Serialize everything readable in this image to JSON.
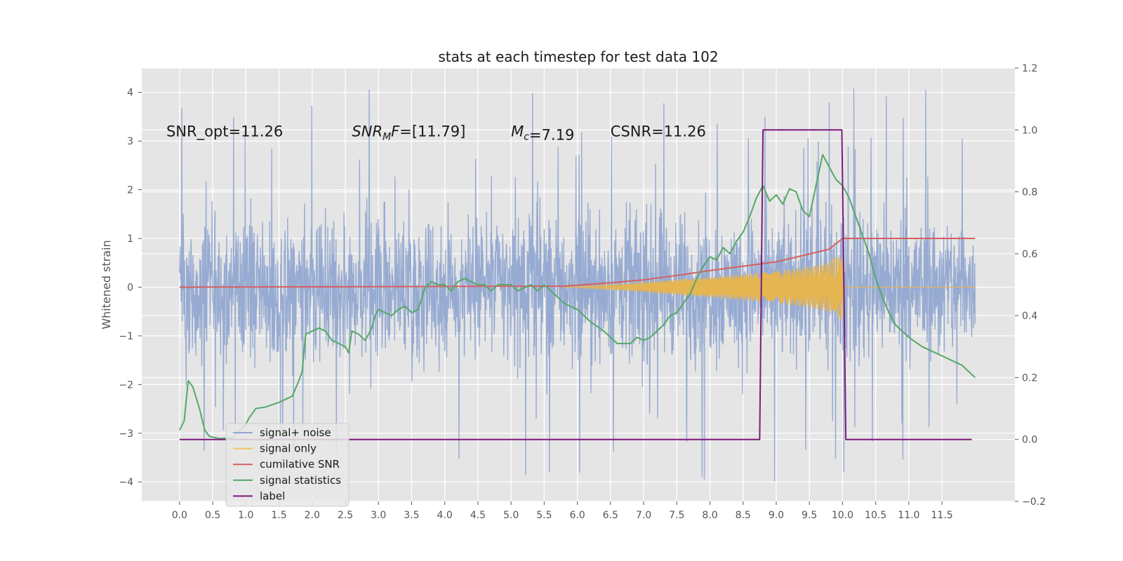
{
  "chart_data": {
    "type": "line",
    "title": "stats at each timestep for test data 102",
    "ylabel": "Whitened strain",
    "y2label": "",
    "xlim": [
      -0.57,
      12.6
    ],
    "ylim": [
      -4.4,
      4.5
    ],
    "y2lim": [
      -0.2,
      1.2
    ],
    "x_ticks": [
      0.0,
      0.5,
      1.0,
      1.5,
      2.0,
      2.5,
      3.0,
      3.5,
      4.0,
      4.5,
      5.0,
      5.5,
      6.0,
      6.5,
      7.0,
      7.5,
      8.0,
      8.5,
      9.0,
      9.5,
      10.0,
      10.5,
      11.0,
      11.5
    ],
    "x_tick_labels": [
      "0.0",
      "0.5",
      "1.0",
      "1.5",
      "2.0",
      "2.5",
      "3.0",
      "3.5",
      "4.0",
      "4.5",
      "5.0",
      "5.5",
      "6.0",
      "6.5",
      "7.0",
      "7.5",
      "8.0",
      "8.5",
      "9.0",
      "9.5",
      "10.0",
      "10.5",
      "11.0",
      "11.5"
    ],
    "y_ticks": [
      -4,
      -3,
      -2,
      -1,
      0,
      1,
      2,
      3,
      4
    ],
    "y_tick_labels": [
      "−4",
      "−3",
      "−2",
      "−1",
      "0",
      "1",
      "2",
      "3",
      "4"
    ],
    "y2_ticks": [
      -0.2,
      0.0,
      0.2,
      0.4,
      0.6,
      0.8,
      1.0,
      1.2
    ],
    "y2_tick_labels": [
      "−0.2",
      "0.0",
      "0.2",
      "0.4",
      "0.6",
      "0.8",
      "1.0",
      "1.2"
    ],
    "grid": true,
    "legend_placement": "lower-left",
    "annotations": [
      {
        "text": "SNR_opt=11.26",
        "x": -0.2,
        "y": 3.2
      },
      {
        "text": "SNR_MF=[11.79]",
        "x": 2.6,
        "y": 3.2,
        "style": "math"
      },
      {
        "text": "M_c=7.19",
        "x": 5.0,
        "y": 3.2,
        "style": "math"
      },
      {
        "text": "CSNR=11.26",
        "x": 6.5,
        "y": 3.2
      }
    ],
    "series": [
      {
        "name": "signal+ noise",
        "axis": "left",
        "color": "#92a8d1",
        "kind": "noise",
        "x_range": [
          0.0,
          12.0
        ],
        "envelope": {
          "typical_max": 2.0,
          "typical_min": -2.0,
          "peak_max": 4.1,
          "peak_min": -4.0
        }
      },
      {
        "name": "signal only",
        "axis": "left",
        "color": "#e5b552",
        "kind": "chirp",
        "envelope_points": [
          [
            5.8,
            0.0
          ],
          [
            6.5,
            0.05
          ],
          [
            7.0,
            0.1
          ],
          [
            7.5,
            0.16
          ],
          [
            8.0,
            0.21
          ],
          [
            8.5,
            0.27
          ],
          [
            9.0,
            0.33
          ],
          [
            9.5,
            0.43
          ],
          [
            9.8,
            0.52
          ],
          [
            10.0,
            0.7
          ],
          [
            10.02,
            0.0
          ],
          [
            12.0,
            0.0
          ]
        ]
      },
      {
        "name": "cumilative SNR",
        "axis": "left",
        "color": "#d65f5f",
        "points": [
          [
            0.0,
            0.0
          ],
          [
            5.8,
            0.02
          ],
          [
            6.5,
            0.09
          ],
          [
            7.0,
            0.15
          ],
          [
            7.5,
            0.24
          ],
          [
            8.0,
            0.34
          ],
          [
            8.5,
            0.43
          ],
          [
            9.0,
            0.52
          ],
          [
            9.5,
            0.68
          ],
          [
            9.8,
            0.78
          ],
          [
            10.0,
            1.0
          ],
          [
            12.0,
            1.0
          ]
        ]
      },
      {
        "name": "signal statistics",
        "axis": "right",
        "color": "#55a868",
        "points": [
          [
            0.0,
            0.03
          ],
          [
            0.07,
            0.06
          ],
          [
            0.13,
            0.19
          ],
          [
            0.2,
            0.17
          ],
          [
            0.3,
            0.1
          ],
          [
            0.38,
            0.03
          ],
          [
            0.45,
            0.01
          ],
          [
            0.6,
            0.003
          ],
          [
            0.8,
            0.005
          ],
          [
            1.0,
            0.05
          ],
          [
            1.05,
            0.07
          ],
          [
            1.15,
            0.1
          ],
          [
            1.3,
            0.105
          ],
          [
            1.5,
            0.12
          ],
          [
            1.6,
            0.13
          ],
          [
            1.7,
            0.14
          ],
          [
            1.8,
            0.19
          ],
          [
            1.85,
            0.22
          ],
          [
            1.9,
            0.34
          ],
          [
            2.0,
            0.35
          ],
          [
            2.1,
            0.36
          ],
          [
            2.2,
            0.35
          ],
          [
            2.3,
            0.32
          ],
          [
            2.4,
            0.31
          ],
          [
            2.5,
            0.3
          ],
          [
            2.55,
            0.28
          ],
          [
            2.6,
            0.35
          ],
          [
            2.7,
            0.34
          ],
          [
            2.8,
            0.32
          ],
          [
            2.9,
            0.36
          ],
          [
            2.95,
            0.4
          ],
          [
            3.0,
            0.42
          ],
          [
            3.1,
            0.41
          ],
          [
            3.2,
            0.4
          ],
          [
            3.3,
            0.42
          ],
          [
            3.4,
            0.43
          ],
          [
            3.5,
            0.41
          ],
          [
            3.6,
            0.42
          ],
          [
            3.7,
            0.49
          ],
          [
            3.8,
            0.51
          ],
          [
            3.9,
            0.5
          ],
          [
            4.0,
            0.5
          ],
          [
            4.1,
            0.48
          ],
          [
            4.2,
            0.51
          ],
          [
            4.3,
            0.52
          ],
          [
            4.4,
            0.51
          ],
          [
            4.5,
            0.5
          ],
          [
            4.6,
            0.5
          ],
          [
            4.7,
            0.48
          ],
          [
            4.8,
            0.5
          ],
          [
            4.9,
            0.5
          ],
          [
            5.0,
            0.5
          ],
          [
            5.1,
            0.48
          ],
          [
            5.2,
            0.49
          ],
          [
            5.3,
            0.5
          ],
          [
            5.4,
            0.48
          ],
          [
            5.5,
            0.5
          ],
          [
            5.6,
            0.48
          ],
          [
            5.8,
            0.44
          ],
          [
            6.0,
            0.42
          ],
          [
            6.2,
            0.38
          ],
          [
            6.4,
            0.35
          ],
          [
            6.6,
            0.31
          ],
          [
            6.8,
            0.31
          ],
          [
            6.9,
            0.33
          ],
          [
            7.0,
            0.32
          ],
          [
            7.1,
            0.33
          ],
          [
            7.2,
            0.35
          ],
          [
            7.3,
            0.37
          ],
          [
            7.4,
            0.4
          ],
          [
            7.5,
            0.41
          ],
          [
            7.6,
            0.44
          ],
          [
            7.7,
            0.47
          ],
          [
            7.8,
            0.52
          ],
          [
            7.9,
            0.56
          ],
          [
            8.0,
            0.59
          ],
          [
            8.1,
            0.58
          ],
          [
            8.2,
            0.62
          ],
          [
            8.3,
            0.6
          ],
          [
            8.4,
            0.64
          ],
          [
            8.5,
            0.67
          ],
          [
            8.6,
            0.72
          ],
          [
            8.7,
            0.78
          ],
          [
            8.8,
            0.82
          ],
          [
            8.9,
            0.77
          ],
          [
            9.0,
            0.79
          ],
          [
            9.1,
            0.76
          ],
          [
            9.2,
            0.81
          ],
          [
            9.3,
            0.8
          ],
          [
            9.4,
            0.74
          ],
          [
            9.5,
            0.72
          ],
          [
            9.6,
            0.82
          ],
          [
            9.7,
            0.92
          ],
          [
            9.8,
            0.88
          ],
          [
            9.9,
            0.84
          ],
          [
            10.0,
            0.82
          ],
          [
            10.1,
            0.78
          ],
          [
            10.2,
            0.72
          ],
          [
            10.3,
            0.66
          ],
          [
            10.4,
            0.6
          ],
          [
            10.5,
            0.52
          ],
          [
            10.6,
            0.46
          ],
          [
            10.7,
            0.41
          ],
          [
            10.8,
            0.37
          ],
          [
            10.9,
            0.35
          ],
          [
            11.0,
            0.33
          ],
          [
            11.2,
            0.3
          ],
          [
            11.4,
            0.28
          ],
          [
            11.6,
            0.26
          ],
          [
            11.8,
            0.24
          ],
          [
            12.0,
            0.2
          ]
        ]
      },
      {
        "name": "label",
        "axis": "right",
        "color": "#7b1a7b",
        "points": [
          [
            0.0,
            0.0
          ],
          [
            8.75,
            0.0
          ],
          [
            8.8,
            1.0
          ],
          [
            9.99,
            1.0
          ],
          [
            10.05,
            0.0
          ],
          [
            11.95,
            0.0
          ]
        ]
      }
    ]
  },
  "legend": {
    "items": [
      {
        "label": "signal+ noise",
        "color": "#92a8d1"
      },
      {
        "label": "signal only",
        "color": "#f2c55c"
      },
      {
        "label": "cumilative SNR",
        "color": "#d65f5f"
      },
      {
        "label": "signal statistics",
        "color": "#55a868"
      },
      {
        "label": "label",
        "color": "#7b1a7b"
      }
    ]
  }
}
